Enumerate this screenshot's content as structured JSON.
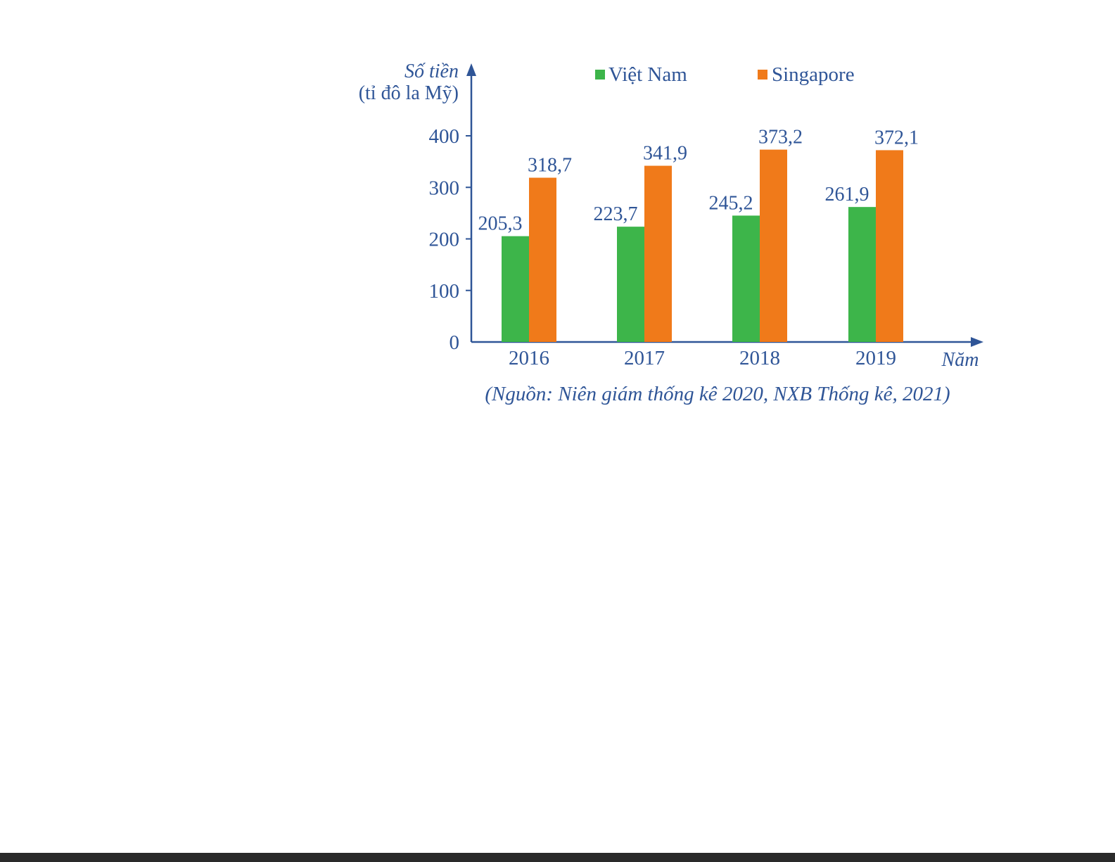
{
  "chart_data": {
    "type": "bar",
    "ylabel_line1": "Số tiền",
    "ylabel_line2": "(tỉ đô la Mỹ)",
    "xlabel": "Năm",
    "categories": [
      "2016",
      "2017",
      "2018",
      "2019"
    ],
    "series": [
      {
        "name": "Việt Nam",
        "color": "#3db54a",
        "values": [
          205.3,
          223.7,
          245.2,
          261.9
        ],
        "value_labels": [
          "205,3",
          "223,7",
          "245,2",
          "261,9"
        ]
      },
      {
        "name": "Singapore",
        "color": "#f07a1a",
        "values": [
          318.7,
          341.9,
          373.2,
          372.1
        ],
        "value_labels": [
          "318,7",
          "341,9",
          "373,2",
          "372,1"
        ]
      }
    ],
    "yticks": [
      0,
      100,
      200,
      300,
      400
    ],
    "ylim": [
      0,
      400
    ],
    "grid": false,
    "legend_position": "top",
    "source": "(Nguồn: Niên giám thống kê 2020, NXB Thống kê, 2021)",
    "axis_color": "#2f5597"
  }
}
